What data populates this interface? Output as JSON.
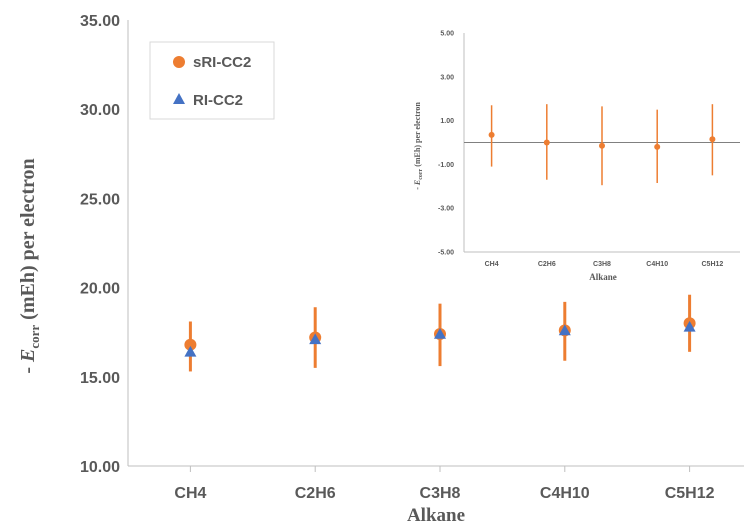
{
  "chart_data": [
    {
      "type": "scatter",
      "categories": [
        "CH4",
        "C2H6",
        "C3H8",
        "C4H10",
        "C5H12"
      ],
      "series": [
        {
          "name": "sRI-CC2",
          "values": [
            16.8,
            17.2,
            17.4,
            17.6,
            18.0
          ],
          "error_low": [
            15.3,
            15.5,
            15.6,
            15.9,
            16.4
          ],
          "error_high": [
            18.1,
            18.9,
            19.1,
            19.2,
            19.6
          ],
          "color": "#ED7D31",
          "marker": "circle"
        },
        {
          "name": "RI-CC2",
          "values": [
            16.4,
            17.1,
            17.4,
            17.6,
            17.8
          ],
          "color": "#4472C4",
          "marker": "triangle"
        }
      ],
      "xlabel": "Alkane",
      "ylabel_prefix": "- ",
      "ylabel_var": "E",
      "ylabel_sub": "corr",
      "ylabel_suffix": " (mEh) per electron",
      "ylim": [
        10,
        35
      ],
      "yticks": [
        "10.00",
        "15.00",
        "20.00",
        "25.00",
        "30.00",
        "35.00"
      ],
      "grid": false,
      "legend": "top-left"
    },
    {
      "type": "scatter",
      "categories": [
        "CH4",
        "C2H6",
        "C3H8",
        "C4H10",
        "C5H12"
      ],
      "series": [
        {
          "values": [
            0.35,
            0.0,
            -0.15,
            -0.2,
            0.15
          ],
          "error_low": [
            -1.1,
            -1.7,
            -1.95,
            -1.85,
            -1.5
          ],
          "error_high": [
            1.7,
            1.75,
            1.65,
            1.5,
            1.75
          ],
          "color": "#ED7D31",
          "marker": "circle"
        }
      ],
      "xlabel": "Alkane",
      "ylabel_prefix": "- ",
      "ylabel_var": "E",
      "ylabel_sub": "corr",
      "ylabel_suffix": " (mEh) per electron",
      "ylim": [
        -5,
        5
      ],
      "yticks": [
        "-5.00",
        "-3.00",
        "-1.00",
        "1.00",
        "3.00",
        "5.00"
      ],
      "zero_line": true,
      "grid": false
    }
  ]
}
